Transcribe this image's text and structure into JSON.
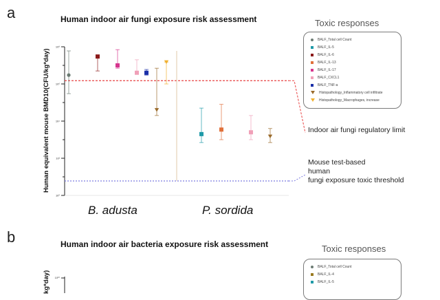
{
  "panel_a": {
    "letter": "a",
    "title": "Human indoor air fungi exposure risk assessment",
    "legend_title": "Toxic responses",
    "legend": [
      {
        "label": "BALF_Total cell Count",
        "color": "#6b7b73",
        "marker": "circle"
      },
      {
        "label": "BALF_IL-5",
        "color": "#1f9aa8",
        "marker": "square"
      },
      {
        "label": "BALF_IL-6",
        "color": "#8b1a1a",
        "marker": "square"
      },
      {
        "label": "BALF_IL-13",
        "color": "#e0703a",
        "marker": "square"
      },
      {
        "label": "BALF_IL-17",
        "color": "#d6358e",
        "marker": "square"
      },
      {
        "label": "BALF_CXCL1",
        "color": "#f0a0b8",
        "marker": "square"
      },
      {
        "label": "BALF_TNF-a",
        "color": "#1a2fa8",
        "marker": "square"
      },
      {
        "label": "Histopathology_Inflammatory cell infiltrate",
        "color": "#9a6a2a",
        "marker": "triangle-down"
      },
      {
        "label": "Histopathology_Macrophages, increase",
        "color": "#f0b030",
        "marker": "triangle-down"
      }
    ],
    "y_axis_label": "Human equivalent mouse BMD10(CFU/kg*day)",
    "y_ticks": [
      "10⁸",
      "10⁶",
      "10⁴",
      "10²",
      "10⁰"
    ],
    "categories": [
      "B. adusta",
      "P. sordida"
    ],
    "annotations": {
      "regulatory_limit": "Indoor air fungi regulatory limit",
      "threshold_lines": [
        "Mouse test-based",
        "human",
        "fungi exposure toxic threshold"
      ]
    },
    "colors": {
      "regulatory_line": "#e84040",
      "threshold_line": "#7a7ae0"
    }
  },
  "chart_data": {
    "type": "scatter",
    "title": "Human indoor air fungi exposure risk assessment",
    "ylabel": "Human equivalent mouse BMD10(CFU/kg*day)",
    "yscale": "log",
    "ylim": [
      1,
      100000000
    ],
    "categories": [
      "B. adusta",
      "P. sordida"
    ],
    "reference_lines": [
      {
        "label": "Indoor air fungi regulatory limit",
        "y": 1500000
      },
      {
        "label": "Mouse test-based human fungi exposure toxic threshold",
        "y": 6
      }
    ],
    "series": [
      {
        "name": "BALF_Total cell Count",
        "points": [
          {
            "category": "B. adusta",
            "y": 3000000,
            "low": 300000,
            "high": 60000000
          }
        ]
      },
      {
        "name": "BALF_IL-5",
        "points": [
          {
            "category": "P. sordida",
            "y": 2000,
            "low": 700,
            "high": 50000
          }
        ]
      },
      {
        "name": "BALF_IL-6",
        "points": [
          {
            "category": "B. adusta",
            "y": 30000000,
            "low": 5000000,
            "high": 30000000
          }
        ]
      },
      {
        "name": "BALF_IL-13",
        "points": [
          {
            "category": "P. sordida",
            "y": 3500,
            "low": 1000,
            "high": 80000
          }
        ]
      },
      {
        "name": "BALF_IL-17",
        "points": [
          {
            "category": "B. adusta",
            "y": 10000000,
            "low": 7000000,
            "high": 70000000
          }
        ]
      },
      {
        "name": "BALF_CXCL1",
        "points": [
          {
            "category": "B. adusta",
            "y": 4000000,
            "low": 3500000,
            "high": 20000000
          },
          {
            "category": "P. sordida",
            "y": 2500,
            "low": 1000,
            "high": 20000
          }
        ]
      },
      {
        "name": "BALF_TNF-a",
        "points": [
          {
            "category": "B. adusta",
            "y": 4000000,
            "low": 3000000,
            "high": 6000000
          }
        ]
      },
      {
        "name": "Histopathology_Inflammatory cell infiltrate",
        "points": [
          {
            "category": "B. adusta",
            "y": 40000,
            "low": 20000,
            "high": 7000000
          },
          {
            "category": "P. sordida",
            "y": 1500,
            "low": 700,
            "high": 4000
          }
        ]
      },
      {
        "name": "Histopathology_Macrophages, increase",
        "points": [
          {
            "category": "B. adusta",
            "y": 15000000,
            "low": 1000000,
            "high": 15000000
          }
        ]
      }
    ],
    "extra_error_bar": {
      "category": "B. adusta",
      "low": 6,
      "high": 60000000
    }
  },
  "panel_b": {
    "letter": "b",
    "title": "Human indoor air bacteria exposure risk assessment",
    "legend_title": "Toxic responses",
    "legend": [
      {
        "label": "BALF_Total cell Count",
        "color": "#6b7b73"
      },
      {
        "label": "BALF_IL-4",
        "color": "#9a7a20"
      },
      {
        "label": "BALF_IL-5",
        "color": "#1f9aa8"
      }
    ],
    "y_axis_label_fragment": "kg*day)",
    "y_tick_top": "10¹⁰"
  }
}
